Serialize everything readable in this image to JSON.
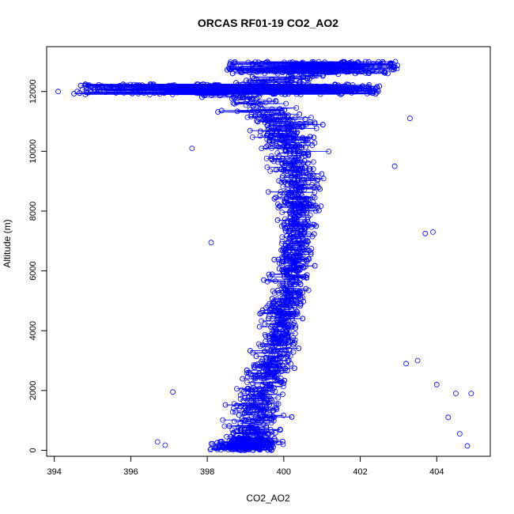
{
  "chart_data": {
    "type": "scatter",
    "title": "ORCAS RF01-19 CO2_AO2",
    "xlabel": "CO2_AO2",
    "ylabel": "Altitude (m)",
    "xlim": [
      393.8,
      405.4
    ],
    "ylim": [
      -200,
      13500
    ],
    "x_ticks": [
      394,
      396,
      398,
      400,
      402,
      404
    ],
    "y_ticks": [
      0,
      2000,
      4000,
      6000,
      8000,
      10000,
      12000
    ],
    "x_tick_labels": [
      "394",
      "396",
      "398",
      "400",
      "402",
      "404"
    ],
    "y_tick_labels": [
      "0",
      "2000",
      "4000",
      "6000",
      "8000",
      "10000",
      "12000"
    ],
    "marker": "open-circle",
    "line": true,
    "series_color": "#0000ff",
    "grid": false,
    "envelope": [
      {
        "alt": 0,
        "center": 399.0,
        "spread": 1.6
      },
      {
        "alt": 500,
        "center": 399.2,
        "spread": 1.6
      },
      {
        "alt": 1000,
        "center": 399.3,
        "spread": 1.5
      },
      {
        "alt": 2000,
        "center": 399.5,
        "spread": 1.4
      },
      {
        "alt": 3000,
        "center": 399.7,
        "spread": 1.3
      },
      {
        "alt": 4000,
        "center": 399.9,
        "spread": 1.2
      },
      {
        "alt": 5000,
        "center": 400.1,
        "spread": 1.1
      },
      {
        "alt": 6000,
        "center": 400.2,
        "spread": 1.1
      },
      {
        "alt": 7000,
        "center": 400.3,
        "spread": 1.0
      },
      {
        "alt": 8000,
        "center": 400.4,
        "spread": 1.1
      },
      {
        "alt": 9000,
        "center": 400.3,
        "spread": 1.3
      },
      {
        "alt": 10000,
        "center": 400.2,
        "spread": 1.5
      },
      {
        "alt": 11000,
        "center": 400.0,
        "spread": 1.7
      },
      {
        "alt": 11800,
        "center": 399.0,
        "spread": 2.2
      },
      {
        "alt": 12000,
        "center": 398.0,
        "spread": 2.5
      },
      {
        "alt": 12500,
        "center": 400.5,
        "spread": 2.0
      },
      {
        "alt": 12900,
        "center": 401.5,
        "spread": 1.2
      }
    ],
    "outliers": [
      {
        "x": 394.1,
        "y": 12000
      },
      {
        "x": 394.6,
        "y": 12000
      },
      {
        "x": 396.7,
        "y": 280
      },
      {
        "x": 396.9,
        "y": 170
      },
      {
        "x": 397.1,
        "y": 1950
      },
      {
        "x": 397.6,
        "y": 10100
      },
      {
        "x": 398.1,
        "y": 6950
      },
      {
        "x": 403.7,
        "y": 7250
      },
      {
        "x": 403.9,
        "y": 7300
      },
      {
        "x": 404.0,
        "y": 2200
      },
      {
        "x": 404.3,
        "y": 1100
      },
      {
        "x": 404.5,
        "y": 1900
      },
      {
        "x": 404.8,
        "y": 150
      },
      {
        "x": 404.9,
        "y": 1900
      },
      {
        "x": 404.6,
        "y": 550
      },
      {
        "x": 403.2,
        "y": 2900
      },
      {
        "x": 403.5,
        "y": 3000
      },
      {
        "x": 402.8,
        "y": 12950
      },
      {
        "x": 403.3,
        "y": 11100
      },
      {
        "x": 402.9,
        "y": 9500
      }
    ]
  }
}
